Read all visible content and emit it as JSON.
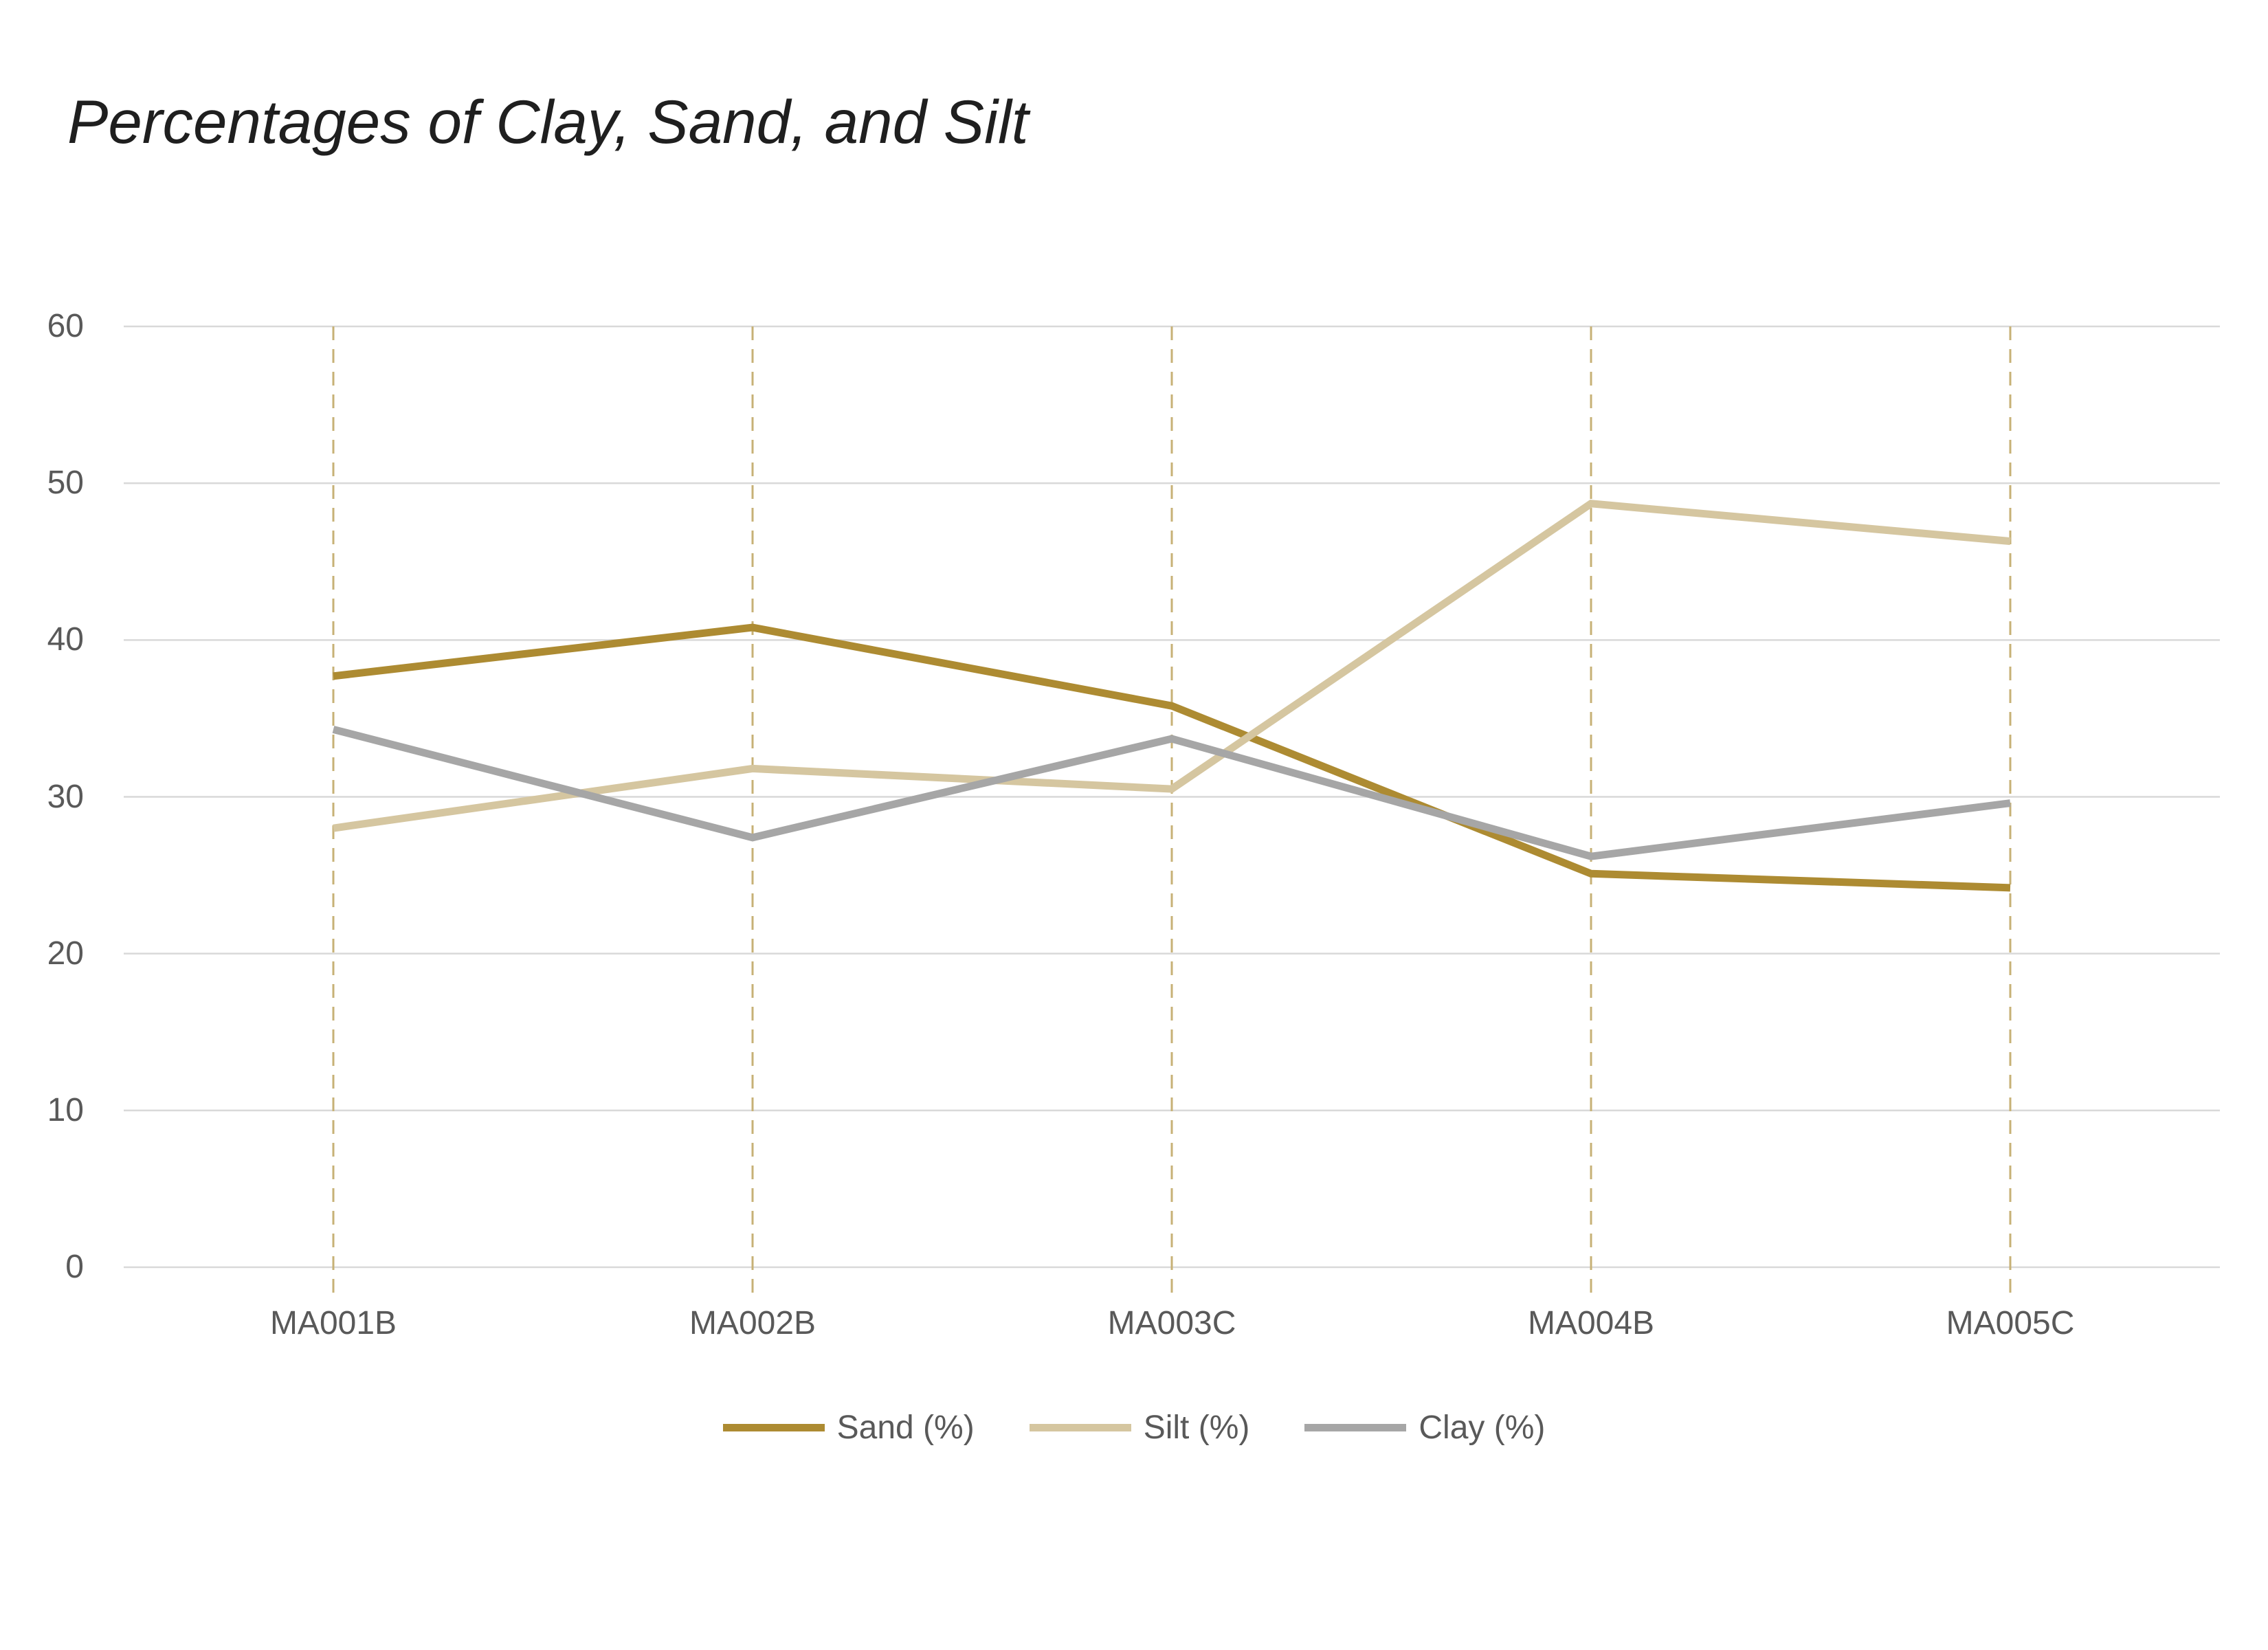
{
  "title": "Percentages of Clay, Sand, and Silt",
  "colors": {
    "title_text": "#1f1f1f",
    "axis_text": "#595959",
    "gridline": "#d9d9d9",
    "category_gridline": "#c7b176",
    "background": "#ffffff",
    "sand": "#ad8b32",
    "silt": "#d5c6a0",
    "clay": "#a6a6a6"
  },
  "chart_data": {
    "type": "line",
    "title": "Percentages of Clay, Sand, and Silt",
    "categories": [
      "MA001B",
      "MA002B",
      "MA003C",
      "MA004B",
      "MA005C"
    ],
    "series": [
      {
        "key": "sand",
        "name": "Sand (%)",
        "color": "#ad8b32",
        "values": [
          37.7,
          40.8,
          35.8,
          25.1,
          24.2
        ]
      },
      {
        "key": "silt",
        "name": "Silt (%)",
        "color": "#d5c6a0",
        "values": [
          28.0,
          31.8,
          30.5,
          48.7,
          46.3
        ]
      },
      {
        "key": "clay",
        "name": "Clay (%)",
        "color": "#a6a6a6",
        "values": [
          34.3,
          27.4,
          33.7,
          26.2,
          29.6
        ]
      }
    ],
    "xlabel": "",
    "ylabel": "",
    "ylim": [
      0,
      60
    ],
    "y_ticks": [
      0,
      10,
      20,
      30,
      40,
      50,
      60
    ],
    "grid": {
      "horizontal": true,
      "vertical_dashed_per_category": true
    },
    "legend_position": "bottom",
    "markers": "none"
  }
}
